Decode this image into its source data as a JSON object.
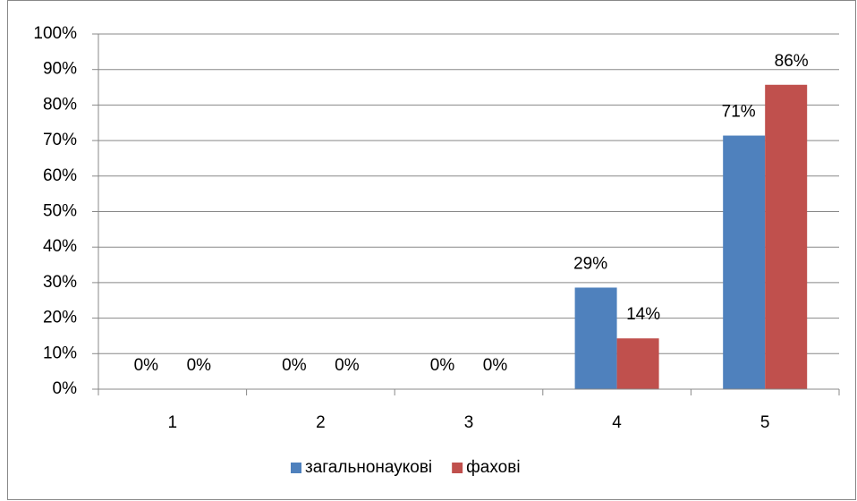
{
  "chart_data": {
    "type": "bar",
    "categories": [
      "1",
      "2",
      "3",
      "4",
      "5"
    ],
    "series": [
      {
        "name": "загальнонаукові",
        "color": "#4f81bd",
        "values": [
          0,
          0,
          0,
          28.6,
          71.4
        ],
        "value_labels": [
          "0%",
          "0%",
          "0%",
          "29%",
          "71%"
        ]
      },
      {
        "name": "фахові",
        "color": "#c0504d",
        "values": [
          0,
          0,
          0,
          14.3,
          85.7
        ],
        "value_labels": [
          "0%",
          "0%",
          "0%",
          "14%",
          "86%"
        ]
      }
    ],
    "ylim": [
      0,
      100
    ],
    "yticks": [
      {
        "value": 0,
        "label": "0%"
      },
      {
        "value": 10,
        "label": "10%"
      },
      {
        "value": 20,
        "label": "20%"
      },
      {
        "value": 30,
        "label": "30%"
      },
      {
        "value": 40,
        "label": "40%"
      },
      {
        "value": 50,
        "label": "50%"
      },
      {
        "value": 60,
        "label": "60%"
      },
      {
        "value": 70,
        "label": "70%"
      },
      {
        "value": 80,
        "label": "80%"
      },
      {
        "value": 90,
        "label": "90%"
      },
      {
        "value": 100,
        "label": "100%"
      }
    ],
    "grid": true,
    "legend": "bottom"
  }
}
